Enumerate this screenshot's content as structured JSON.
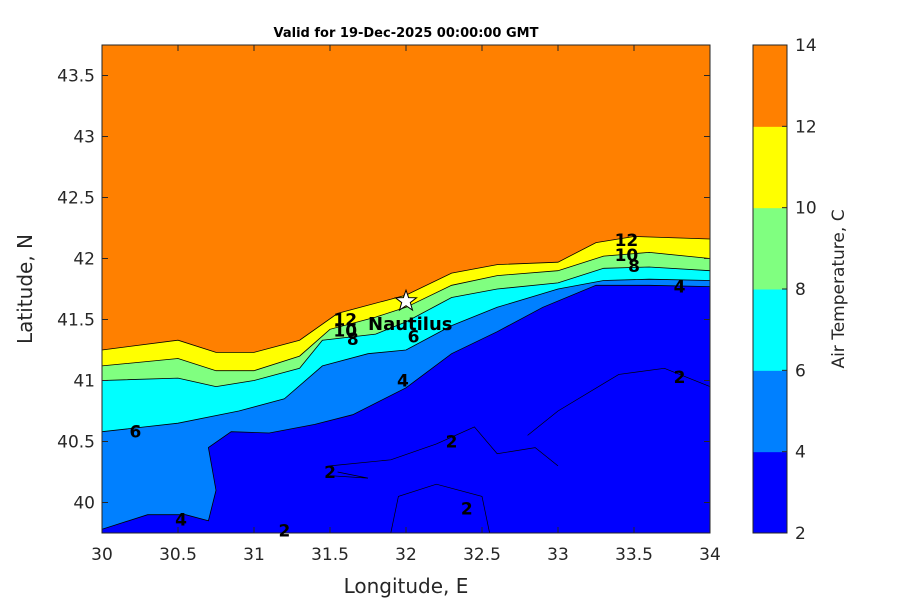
{
  "chart_data": {
    "type": "contour",
    "title": "Valid for 19-Dec-2025 00:00:00 GMT",
    "xlabel": "Longitude, E",
    "ylabel": "Latitude, N",
    "xlim": [
      30,
      34
    ],
    "ylim": [
      39.75,
      43.75
    ],
    "xticks": [
      "30",
      "30.5",
      "31",
      "31.5",
      "32",
      "32.5",
      "33",
      "33.5",
      "34"
    ],
    "yticks": [
      "40",
      "40.5",
      "41",
      "41.5",
      "42",
      "42.5",
      "43",
      "43.5"
    ],
    "colorbar": {
      "label": "Air Temperature, C",
      "ticks": [
        "2",
        "4",
        "6",
        "8",
        "10",
        "12",
        "14"
      ],
      "levels": [
        2,
        4,
        6,
        8,
        10,
        12,
        14
      ],
      "colors": [
        "#0000ff",
        "#0080ff",
        "#00ffff",
        "#80ff80",
        "#ffff00",
        "#ff8000",
        "#ff0000"
      ]
    },
    "boundaries": [
      {
        "level": 12,
        "points": [
          [
            30,
            41.25
          ],
          [
            30.5,
            41.33
          ],
          [
            30.75,
            41.23
          ],
          [
            31.0,
            41.23
          ],
          [
            31.3,
            41.33
          ],
          [
            31.55,
            41.55
          ],
          [
            31.85,
            41.65
          ],
          [
            32.0,
            41.7
          ],
          [
            32.3,
            41.88
          ],
          [
            32.6,
            41.95
          ],
          [
            33.0,
            41.97
          ],
          [
            33.25,
            42.13
          ],
          [
            33.5,
            42.18
          ],
          [
            34,
            42.16
          ]
        ]
      },
      {
        "level": 10,
        "points": [
          [
            30,
            41.12
          ],
          [
            30.5,
            41.18
          ],
          [
            30.75,
            41.08
          ],
          [
            31.0,
            41.08
          ],
          [
            31.3,
            41.2
          ],
          [
            31.5,
            41.42
          ],
          [
            31.8,
            41.52
          ],
          [
            32.0,
            41.6
          ],
          [
            32.3,
            41.78
          ],
          [
            32.6,
            41.86
          ],
          [
            33.0,
            41.9
          ],
          [
            33.3,
            42.02
          ],
          [
            33.6,
            42.05
          ],
          [
            34,
            42.0
          ]
        ]
      },
      {
        "level": 8,
        "points": [
          [
            30,
            41.0
          ],
          [
            30.5,
            41.02
          ],
          [
            30.75,
            40.95
          ],
          [
            31.0,
            41.0
          ],
          [
            31.3,
            41.1
          ],
          [
            31.45,
            41.33
          ],
          [
            31.8,
            41.38
          ],
          [
            32.0,
            41.48
          ],
          [
            32.3,
            41.68
          ],
          [
            32.6,
            41.75
          ],
          [
            33.0,
            41.8
          ],
          [
            33.3,
            41.92
          ],
          [
            33.6,
            41.93
          ],
          [
            34,
            41.9
          ]
        ]
      },
      {
        "level": 6,
        "points": [
          [
            30,
            40.58
          ],
          [
            30.5,
            40.65
          ],
          [
            30.9,
            40.75
          ],
          [
            31.2,
            40.85
          ],
          [
            31.45,
            41.12
          ],
          [
            31.75,
            41.22
          ],
          [
            32.0,
            41.25
          ],
          [
            32.3,
            41.45
          ],
          [
            32.6,
            41.6
          ],
          [
            33.0,
            41.75
          ],
          [
            33.3,
            41.82
          ],
          [
            33.6,
            41.83
          ],
          [
            34,
            41.82
          ]
        ]
      },
      {
        "level": 4,
        "points": [
          [
            30,
            39.78
          ],
          [
            30.3,
            39.9
          ],
          [
            30.55,
            39.9
          ],
          [
            30.7,
            39.85
          ],
          [
            30.75,
            40.1
          ],
          [
            30.7,
            40.45
          ],
          [
            30.85,
            40.58
          ],
          [
            31.1,
            40.57
          ],
          [
            31.4,
            40.64
          ],
          [
            31.65,
            40.72
          ],
          [
            32.0,
            40.94
          ],
          [
            32.3,
            41.22
          ],
          [
            32.6,
            41.4
          ],
          [
            32.9,
            41.6
          ],
          [
            33.25,
            41.78
          ],
          [
            33.6,
            41.78
          ],
          [
            34,
            41.77
          ]
        ]
      }
    ],
    "contour_labels": [
      {
        "text": "12",
        "lon": 31.6,
        "lat": 41.5
      },
      {
        "text": "10",
        "lon": 31.6,
        "lat": 41.41
      },
      {
        "text": "8",
        "lon": 31.65,
        "lat": 41.34
      },
      {
        "text": "6",
        "lon": 32.05,
        "lat": 41.36
      },
      {
        "text": "4",
        "lon": 31.98,
        "lat": 41.0
      },
      {
        "text": "6",
        "lon": 30.22,
        "lat": 40.58
      },
      {
        "text": "4",
        "lon": 30.52,
        "lat": 39.86
      },
      {
        "text": "2",
        "lon": 31.2,
        "lat": 39.77
      },
      {
        "text": "2",
        "lon": 31.5,
        "lat": 40.25
      },
      {
        "text": "2",
        "lon": 32.3,
        "lat": 40.5
      },
      {
        "text": "2",
        "lon": 32.4,
        "lat": 39.95
      },
      {
        "text": "2",
        "lon": 33.8,
        "lat": 41.03
      },
      {
        "text": "4",
        "lon": 33.8,
        "lat": 41.77
      },
      {
        "text": "12",
        "lon": 33.45,
        "lat": 42.15
      },
      {
        "text": "10",
        "lon": 33.45,
        "lat": 42.03
      },
      {
        "text": "8",
        "lon": 33.5,
        "lat": 41.94
      }
    ],
    "site": {
      "name": "Nautilus",
      "lon": 32.0,
      "lat": 41.65
    }
  }
}
